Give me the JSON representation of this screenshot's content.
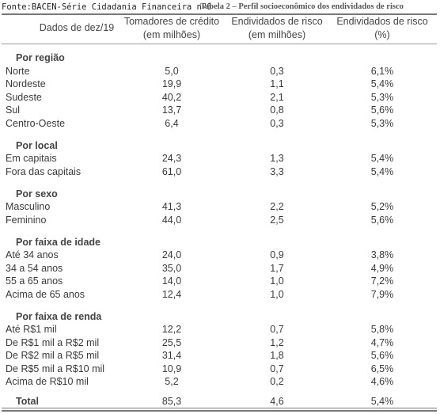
{
  "source": "Fonte:BACEN-Série Cidadania Financeira nº6",
  "title": "Tabela 2 – Perfil socioeconômico dos endividados de risco",
  "columns": [
    [
      "Dados de dez/19"
    ],
    [
      "Tomadores de crédito",
      "(em milhões)"
    ],
    [
      "Endividados de risco",
      "(em milhões)"
    ],
    [
      "Endividados de risco",
      "(%)"
    ]
  ],
  "sections": [
    {
      "heading": "Por região",
      "rows": [
        [
          "Norte",
          "5,0",
          "0,3",
          "6,1%"
        ],
        [
          "Nordeste",
          "19,9",
          "1,1",
          "5,4%"
        ],
        [
          "Sudeste",
          "40,2",
          "2,1",
          "5,3%"
        ],
        [
          "Sul",
          "13,7",
          "0,8",
          "5,6%"
        ],
        [
          "Centro-Oeste",
          "6,4",
          "0,3",
          "5,3%"
        ]
      ]
    },
    {
      "heading": "Por local",
      "rows": [
        [
          "Em capitais",
          "24,3",
          "1,3",
          "5,4%"
        ],
        [
          "Fora das capitais",
          "61,0",
          "3,3",
          "5,4%"
        ]
      ]
    },
    {
      "heading": "Por sexo",
      "rows": [
        [
          "Masculino",
          "41,3",
          "2,2",
          "5,2%"
        ],
        [
          "Feminino",
          "44,0",
          "2,5",
          "5,6%"
        ]
      ]
    },
    {
      "heading": "Por faixa de idade",
      "rows": [
        [
          "Até 34 anos",
          "24,0",
          "0,9",
          "3,8%"
        ],
        [
          "34 a 54 anos",
          "35,0",
          "1,7",
          "4,9%"
        ],
        [
          "55 a 65 anos",
          "14,0",
          "1,0",
          "7,2%"
        ],
        [
          "Acima de 65 anos",
          "12,4",
          "1,0",
          "7,9%"
        ]
      ]
    },
    {
      "heading": "Por faixa de renda",
      "rows": [
        [
          "Até R$1 mil",
          "12,2",
          "0,7",
          "5,8%"
        ],
        [
          "De R$1 mil a R$2 mil",
          "25,5",
          "1,2",
          "4,7%"
        ],
        [
          "De R$2 mil a R$5 mil",
          "31,4",
          "1,8",
          "5,6%"
        ],
        [
          "De R$5 mil a R$10 mil",
          "10,9",
          "0,7",
          "6,5%"
        ],
        [
          "Acima de R$10 mil",
          "5,2",
          "0,2",
          "4,6%"
        ]
      ]
    }
  ],
  "total": [
    "Total",
    "85,3",
    "4,6",
    "5,4%"
  ]
}
